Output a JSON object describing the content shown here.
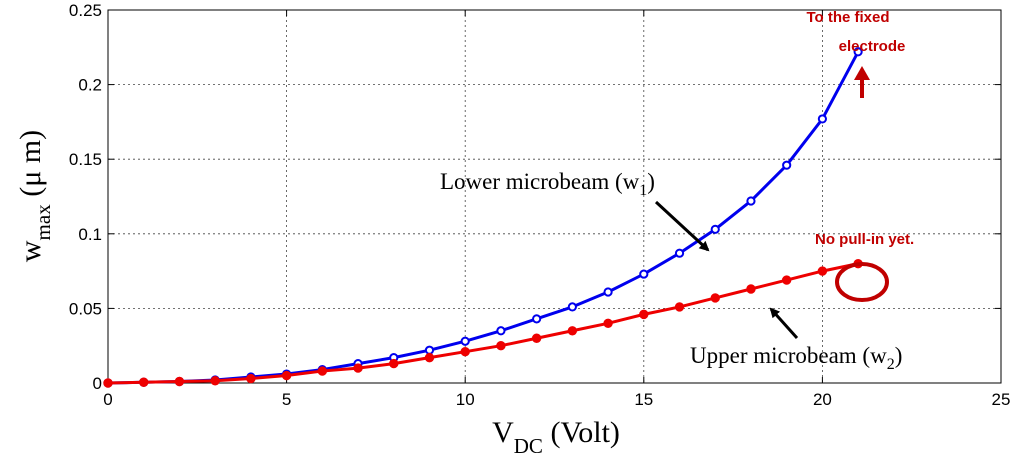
{
  "chart_data": {
    "type": "line",
    "xlabel_main": "V",
    "xlabel_sub": "DC",
    "xlabel_rest": " (Volt)",
    "ylabel_main": "w",
    "ylabel_sub": "max",
    "ylabel_rest": " (μ m)",
    "xlim": [
      0,
      25
    ],
    "ylim": [
      0,
      0.25
    ],
    "xticks": [
      0,
      5,
      10,
      15,
      20,
      25
    ],
    "yticks": [
      0,
      0.05,
      0.1,
      0.15,
      0.2,
      0.25
    ],
    "xtick_labels": [
      "0",
      "5",
      "10",
      "15",
      "20",
      "25"
    ],
    "ytick_labels": [
      "0",
      "0.05",
      "0.1",
      "0.15",
      "0.2",
      "0.25"
    ],
    "grid": true,
    "series": [
      {
        "name": "Lower microbeam (w1)",
        "color": "#0000ee",
        "marker": "open-circle",
        "x": [
          0,
          1,
          2,
          3,
          4,
          5,
          6,
          7,
          8,
          9,
          10,
          11,
          12,
          13,
          14,
          15,
          16,
          17,
          18,
          19,
          20,
          21
        ],
        "y": [
          0,
          0.0005,
          0.001,
          0.002,
          0.004,
          0.006,
          0.009,
          0.013,
          0.017,
          0.022,
          0.028,
          0.035,
          0.043,
          0.051,
          0.061,
          0.073,
          0.087,
          0.103,
          0.122,
          0.146,
          0.177,
          0.222
        ]
      },
      {
        "name": "Upper microbeam (w2)",
        "color": "#ee0000",
        "marker": "filled-circle",
        "x": [
          0,
          1,
          2,
          3,
          4,
          5,
          6,
          7,
          8,
          9,
          10,
          11,
          12,
          13,
          14,
          15,
          16,
          17,
          18,
          19,
          20,
          21
        ],
        "y": [
          0,
          0.0005,
          0.001,
          0.0015,
          0.003,
          0.005,
          0.008,
          0.01,
          0.013,
          0.017,
          0.021,
          0.025,
          0.03,
          0.035,
          0.04,
          0.046,
          0.051,
          0.057,
          0.063,
          0.069,
          0.075,
          0.08
        ]
      }
    ],
    "annotations": {
      "lower_label": {
        "main": "Lower microbeam (w",
        "sub": "1",
        "close": ")"
      },
      "upper_label": {
        "main": "Upper microbeam (w",
        "sub": "2",
        "close": ")"
      },
      "fixed_electrode_line1": "To the fixed",
      "fixed_electrode_line2": "electrode",
      "no_pull_in": "No pull-in yet.",
      "accent_color": "#c00000"
    }
  }
}
